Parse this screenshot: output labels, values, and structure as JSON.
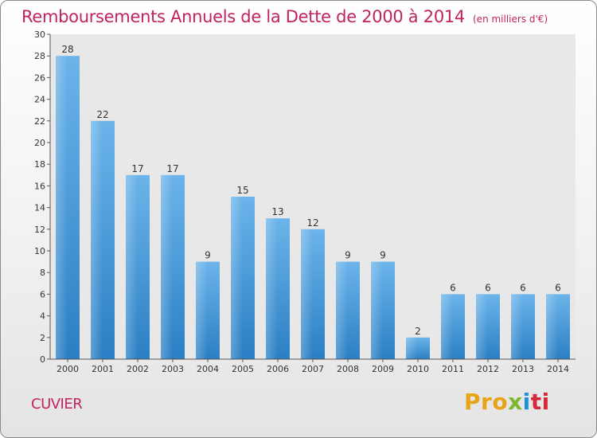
{
  "header": {
    "title": "Remboursements Annuels de la Dette de 2000 à 2014",
    "unit": "(en milliers d'€)"
  },
  "footer": {
    "town": "CUVIER",
    "logo": "Proxiti",
    "logo_parts": [
      "Pro",
      "x",
      "i",
      "ti"
    ]
  },
  "colors": {
    "title": "#c0235f",
    "bar_light": "#6cb4ea",
    "bar_dark": "#2a7fc4",
    "plot_bg": "#e8e8e8"
  },
  "chart_data": {
    "type": "bar",
    "categories": [
      "2000",
      "2001",
      "2002",
      "2003",
      "2004",
      "2005",
      "2006",
      "2007",
      "2008",
      "2009",
      "2010",
      "2011",
      "2012",
      "2013",
      "2014"
    ],
    "values": [
      28,
      22,
      17,
      17,
      9,
      15,
      13,
      12,
      9,
      9,
      2,
      6,
      6,
      6,
      6
    ],
    "title": "Remboursements Annuels de la Dette de 2000 à 2014",
    "xlabel": "",
    "ylabel": "",
    "ylim": [
      0,
      30
    ],
    "yticks": [
      0,
      2,
      4,
      6,
      8,
      10,
      12,
      14,
      16,
      18,
      20,
      22,
      24,
      26,
      28,
      30
    ],
    "data_labels": true,
    "grid": false,
    "legend": "none"
  }
}
